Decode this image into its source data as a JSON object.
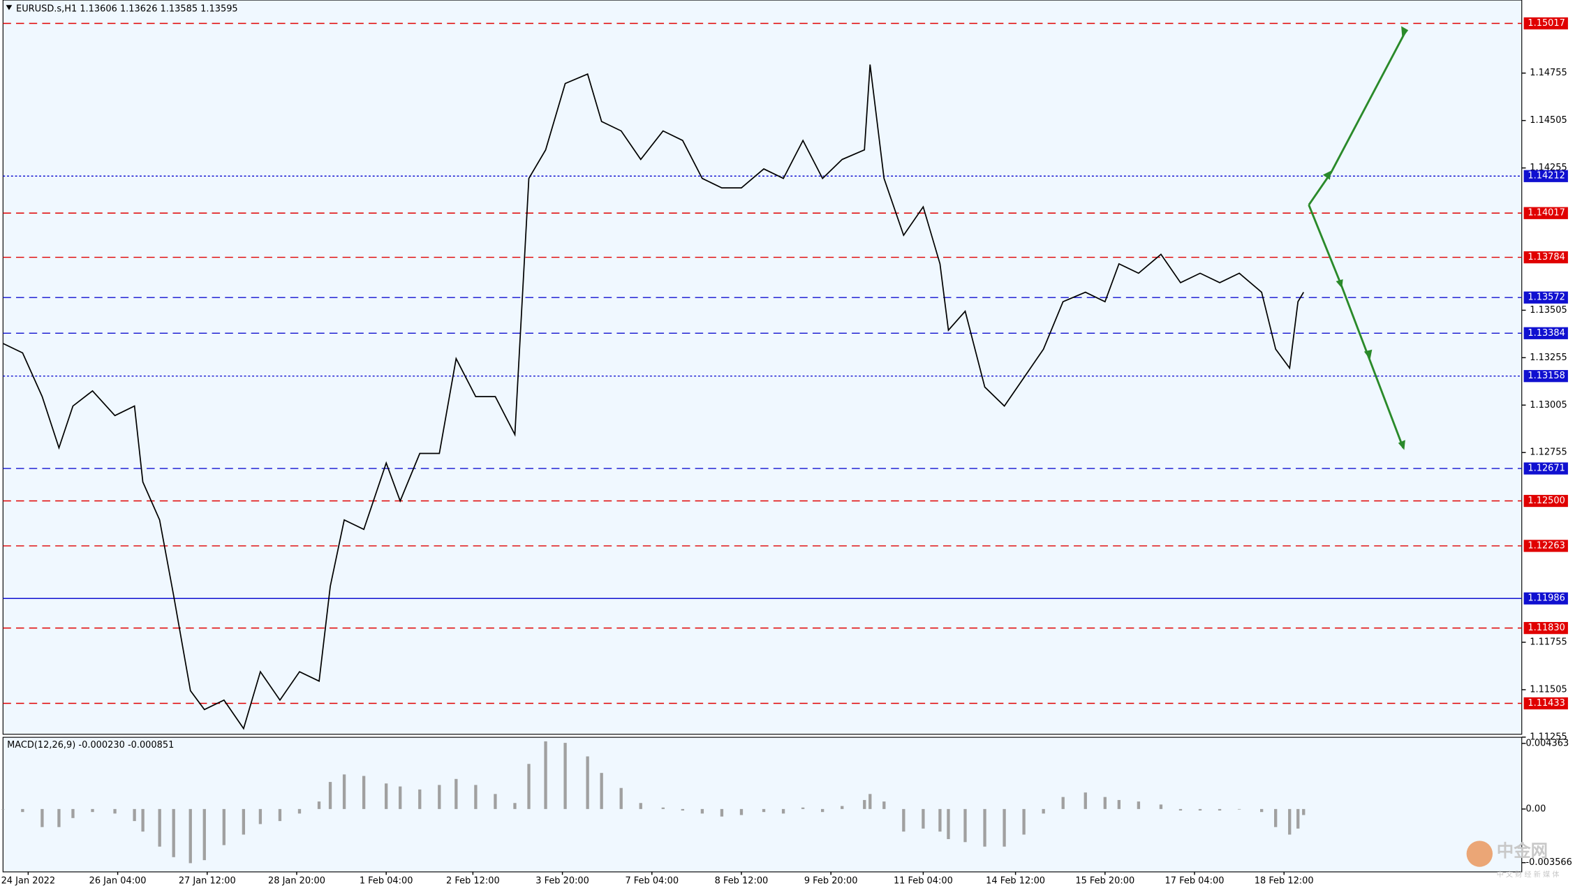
{
  "chart_data": {
    "type": "line",
    "title": "EURUSD.s,H1  1.13606 1.13626 1.13585 1.13595",
    "watermark": "中金网",
    "watermark_sub": "中 文 财 经 新 媒 体",
    "x": [
      0,
      7,
      14,
      20,
      25,
      32,
      40,
      47,
      50,
      56,
      61,
      67,
      72,
      79,
      86,
      92,
      99,
      106,
      113,
      117,
      122,
      129,
      137,
      142,
      149,
      156,
      162,
      169,
      176,
      183,
      188,
      194,
      201,
      209,
      214,
      221,
      228,
      236,
      243,
      250,
      257,
      264,
      272,
      279,
      286,
      293,
      300,
      308,
      310,
      315,
      322,
      329,
      335,
      338,
      344,
      351,
      358,
      365,
      372,
      379,
      387,
      394,
      399,
      406,
      414,
      421,
      428,
      435,
      442,
      450,
      455,
      460,
      463,
      465
    ],
    "xlim": [
      0,
      543
    ],
    "xticks": [
      {
        "value": 9,
        "label": "24 Jan 2022"
      },
      {
        "value": 41,
        "label": "26 Jan 04:00"
      },
      {
        "value": 73,
        "label": "27 Jan 12:00"
      },
      {
        "value": 105,
        "label": "28 Jan 20:00"
      },
      {
        "value": 137,
        "label": "1 Feb 04:00"
      },
      {
        "value": 168,
        "label": "2 Feb 12:00"
      },
      {
        "value": 200,
        "label": "3 Feb 20:00"
      },
      {
        "value": 232,
        "label": "7 Feb 04:00"
      },
      {
        "value": 264,
        "label": "8 Feb 12:00"
      },
      {
        "value": 296,
        "label": "9 Feb 20:00"
      },
      {
        "value": 329,
        "label": "11 Feb 04:00"
      },
      {
        "value": 362,
        "label": "14 Feb 12:00"
      },
      {
        "value": 394,
        "label": "15 Feb 20:00"
      },
      {
        "value": 426,
        "label": "17 Feb 04:00"
      },
      {
        "value": 458,
        "label": "18 Feb 12:00"
      }
    ],
    "series": [
      {
        "name": "EURUSD.s",
        "color": "#000000",
        "values": [
          1.1333,
          1.1328,
          1.1305,
          1.1278,
          1.13,
          1.1308,
          1.1295,
          1.13,
          1.126,
          1.124,
          1.12,
          1.115,
          1.114,
          1.1145,
          1.113,
          1.116,
          1.1145,
          1.116,
          1.1155,
          1.1205,
          1.124,
          1.1235,
          1.127,
          1.125,
          1.1275,
          1.1275,
          1.1325,
          1.1305,
          1.1305,
          1.1285,
          1.142,
          1.1435,
          1.147,
          1.1475,
          1.145,
          1.1445,
          1.143,
          1.1445,
          1.144,
          1.142,
          1.1415,
          1.1415,
          1.1425,
          1.142,
          1.144,
          1.142,
          1.143,
          1.1435,
          1.148,
          1.142,
          1.139,
          1.1405,
          1.1375,
          1.134,
          1.135,
          1.131,
          1.13,
          1.1315,
          1.133,
          1.1355,
          1.136,
          1.1355,
          1.1375,
          1.137,
          1.138,
          1.1365,
          1.137,
          1.1365,
          1.137,
          1.136,
          1.133,
          1.132,
          1.1355,
          1.136
        ]
      }
    ],
    "ylim": [
      1.1127,
      1.1514
    ],
    "yticks": [
      1.14755,
      1.14505,
      1.14255,
      1.13505,
      1.13255,
      1.13005,
      1.12755,
      1.11755,
      1.11505,
      1.11255
    ],
    "levels": [
      {
        "value": 1.15017,
        "color": "#e00000",
        "style": "dashed"
      },
      {
        "value": 1.14212,
        "color": "#1010d0",
        "style": "dotted"
      },
      {
        "value": 1.14017,
        "color": "#e00000",
        "style": "dashed"
      },
      {
        "value": 1.13784,
        "color": "#e00000",
        "style": "dashed"
      },
      {
        "value": 1.13572,
        "color": "#1010d0",
        "style": "dashed"
      },
      {
        "value": 1.13384,
        "color": "#1010d0",
        "style": "dashed"
      },
      {
        "value": 1.13158,
        "color": "#1010d0",
        "style": "dotted"
      },
      {
        "value": 1.12671,
        "color": "#1010d0",
        "style": "dashed"
      },
      {
        "value": 1.125,
        "label": "1.12500",
        "color": "#e00000",
        "style": "dashed"
      },
      {
        "value": 1.12263,
        "color": "#e00000",
        "style": "dashed"
      },
      {
        "value": 1.11986,
        "color": "#1010d0",
        "style": "solid"
      },
      {
        "value": 1.1183,
        "label": "1.11830",
        "color": "#e00000",
        "style": "dashed"
      },
      {
        "value": 1.11433,
        "color": "#e00000",
        "style": "dashed"
      }
    ],
    "macd": {
      "title": "MACD(12,26,9) -0.000230 -0.000851",
      "color": "#a0a0a0",
      "values": [
        0,
        -0.0002,
        -0.0012,
        -0.0012,
        -0.0006,
        -0.0002,
        -0.0003,
        -0.0008,
        -0.0015,
        -0.0025,
        -0.0032,
        -0.0036,
        -0.0034,
        -0.0024,
        -0.0017,
        -0.001,
        -0.0008,
        -0.0003,
        0.0005,
        0.0018,
        0.0023,
        0.0022,
        0.0017,
        0.0015,
        0.0013,
        0.0016,
        0.002,
        0.0016,
        0.001,
        0.0004,
        0.003,
        0.0045,
        0.0044,
        0.0035,
        0.0024,
        0.0014,
        0.0004,
        0.0001,
        -0.0001,
        -0.0003,
        -0.0005,
        -0.0004,
        -0.0002,
        -0.0003,
        0.0001,
        -0.0002,
        0.0002,
        0.0006,
        0.001,
        0.0005,
        -0.0015,
        -0.0013,
        -0.0015,
        -0.002,
        -0.0022,
        -0.0025,
        -0.0025,
        -0.0017,
        -0.0003,
        0.0008,
        0.0011,
        0.0008,
        0.0006,
        0.0005,
        0.0003,
        -0.0001,
        -0.0001,
        -0.0001,
        0,
        -0.0002,
        -0.0012,
        -0.0017,
        -0.0013,
        -0.0004
      ],
      "ylim": [
        -0.00418,
        0.00477
      ],
      "yticks": [
        0.004363,
        {
          "value": 0,
          "label": "0.00"
        },
        -0.003566
      ]
    }
  }
}
